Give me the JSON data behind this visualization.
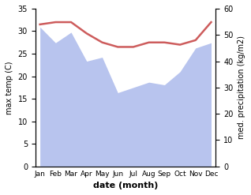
{
  "months": [
    "Jan",
    "Feb",
    "Mar",
    "Apr",
    "May",
    "Jun",
    "Jul",
    "Aug",
    "Sep",
    "Oct",
    "Nov",
    "Dec"
  ],
  "temp_max": [
    31.5,
    32.0,
    32.0,
    29.5,
    27.5,
    26.5,
    26.5,
    27.5,
    27.5,
    27.0,
    28.0,
    32.0
  ],
  "precipitation": [
    53.0,
    47.0,
    51.0,
    40.0,
    41.5,
    28.0,
    30.0,
    32.0,
    31.0,
    36.0,
    45.0,
    47.0
  ],
  "temp_color": "#cd5c5c",
  "precip_fill_color": "#b8c4ee",
  "temp_ylim": [
    0,
    35
  ],
  "precip_ylim": [
    0,
    60
  ],
  "temp_yticks": [
    0,
    5,
    10,
    15,
    20,
    25,
    30,
    35
  ],
  "precip_yticks": [
    0,
    10,
    20,
    30,
    40,
    50,
    60
  ],
  "xlabel": "date (month)",
  "ylabel_left": "max temp (C)",
  "ylabel_right": "med. precipitation (kg/m2)",
  "bg_color": "#ffffff"
}
